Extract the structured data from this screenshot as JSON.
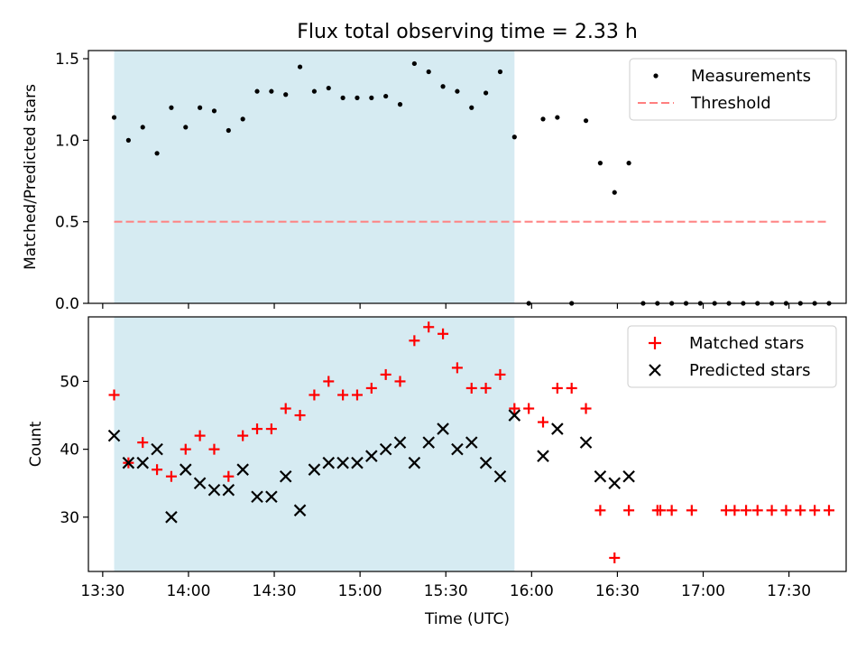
{
  "title": "Flux total observing time = 2.33 h",
  "xlabel": "Time (UTC)",
  "x_ticks": [
    "13:30",
    "14:00",
    "14:30",
    "15:00",
    "15:30",
    "16:00",
    "16:30",
    "17:00",
    "17:30"
  ],
  "highlight_span": [
    "13:34",
    "15:54"
  ],
  "chart_data": [
    {
      "type": "scatter",
      "ylabel": "Matched/Predicted stars",
      "ylim": [
        0,
        1.55
      ],
      "y_ticks": [
        0.0,
        0.5,
        1.0,
        1.5
      ],
      "legend": {
        "placement": "top-right"
      },
      "series": [
        {
          "name": "Measurements",
          "marker": "dot",
          "color": "#000000",
          "x": [
            "13:34",
            "13:39",
            "13:44",
            "13:49",
            "13:54",
            "13:59",
            "14:04",
            "14:09",
            "14:14",
            "14:19",
            "14:24",
            "14:29",
            "14:34",
            "14:39",
            "14:44",
            "14:49",
            "14:54",
            "14:59",
            "15:04",
            "15:09",
            "15:14",
            "15:19",
            "15:24",
            "15:29",
            "15:34",
            "15:39",
            "15:44",
            "15:49",
            "15:54",
            "15:59",
            "16:04",
            "16:09",
            "16:14",
            "16:19",
            "16:24",
            "16:29",
            "16:34",
            "16:39",
            "16:44",
            "16:49",
            "16:54",
            "16:59",
            "17:04",
            "17:09",
            "17:14",
            "17:19",
            "17:24",
            "17:29",
            "17:34",
            "17:39",
            "17:44"
          ],
          "y": [
            1.14,
            1.0,
            1.08,
            0.92,
            1.2,
            1.08,
            1.2,
            1.18,
            1.06,
            1.13,
            1.3,
            1.3,
            1.28,
            1.45,
            1.3,
            1.32,
            1.26,
            1.26,
            1.26,
            1.27,
            1.22,
            1.47,
            1.42,
            1.33,
            1.3,
            1.2,
            1.29,
            1.42,
            1.02,
            0.0,
            1.13,
            1.14,
            0.0,
            1.12,
            0.86,
            0.68,
            0.86,
            0.0,
            0.0,
            0.0,
            0.0,
            0.0,
            0.0,
            0.0,
            0.0,
            0.0,
            0.0,
            0.0,
            0.0,
            0.0,
            0.0
          ]
        },
        {
          "name": "Threshold",
          "style": "dashed",
          "color": "#ff7f7f",
          "x": [
            "13:34",
            "17:44"
          ],
          "y": [
            0.5,
            0.5
          ]
        }
      ]
    },
    {
      "type": "scatter",
      "ylabel": "Count",
      "ylim": [
        22,
        59.5
      ],
      "y_ticks": [
        30,
        40,
        50
      ],
      "legend": {
        "placement": "top-right"
      },
      "series": [
        {
          "name": "Matched stars",
          "marker": "plus",
          "color": "#ff0000",
          "x": [
            "13:34",
            "13:39",
            "13:44",
            "13:49",
            "13:54",
            "13:59",
            "14:04",
            "14:09",
            "14:14",
            "14:19",
            "14:24",
            "14:29",
            "14:34",
            "14:39",
            "14:44",
            "14:49",
            "14:54",
            "14:59",
            "15:04",
            "15:09",
            "15:14",
            "15:19",
            "15:24",
            "15:29",
            "15:34",
            "15:39",
            "15:44",
            "15:49",
            "15:54",
            "15:59",
            "16:04",
            "16:09",
            "16:14",
            "16:19",
            "16:24",
            "16:29",
            "16:34",
            "16:44",
            "16:45",
            "16:49",
            "16:56",
            "17:08",
            "17:11",
            "17:15",
            "17:19",
            "17:24",
            "17:29",
            "17:34",
            "17:39",
            "17:44"
          ],
          "y": [
            48,
            38,
            41,
            37,
            36,
            40,
            42,
            40,
            36,
            42,
            43,
            43,
            46,
            45,
            48,
            50,
            48,
            48,
            49,
            51,
            50,
            56,
            58,
            57,
            52,
            49,
            49,
            51,
            46,
            46,
            44,
            49,
            49,
            46,
            31,
            24,
            31,
            31,
            31,
            31,
            31,
            31,
            31,
            31,
            31,
            31,
            31,
            31,
            31,
            31
          ]
        },
        {
          "name": "Predicted stars",
          "marker": "x",
          "color": "#000000",
          "x": [
            "13:34",
            "13:39",
            "13:44",
            "13:49",
            "13:54",
            "13:59",
            "14:04",
            "14:09",
            "14:14",
            "14:19",
            "14:24",
            "14:29",
            "14:34",
            "14:39",
            "14:44",
            "14:49",
            "14:54",
            "14:59",
            "15:04",
            "15:09",
            "15:14",
            "15:19",
            "15:24",
            "15:29",
            "15:34",
            "15:39",
            "15:44",
            "15:49",
            "15:54",
            "16:04",
            "16:09",
            "16:19",
            "16:24",
            "16:29",
            "16:34"
          ],
          "y": [
            42,
            38,
            38,
            40,
            30,
            37,
            35,
            34,
            34,
            37,
            33,
            33,
            36,
            31,
            37,
            38,
            38,
            38,
            39,
            40,
            41,
            38,
            41,
            43,
            40,
            41,
            38,
            36,
            45,
            39,
            43,
            41,
            36,
            35,
            36
          ]
        }
      ]
    }
  ]
}
